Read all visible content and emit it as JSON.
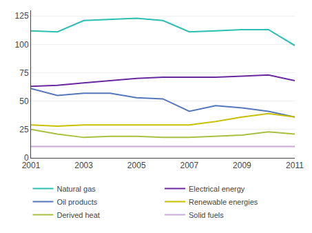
{
  "chart_data": {
    "type": "line",
    "x": [
      2001,
      2002,
      2003,
      2004,
      2005,
      2006,
      2007,
      2008,
      2009,
      2010,
      2011
    ],
    "series": [
      {
        "name": "Natural gas",
        "color": "#2bbfb0",
        "values": [
          112,
          111,
          121,
          122,
          123,
          121,
          111,
          112,
          113,
          113,
          99
        ]
      },
      {
        "name": "Electrical energy",
        "color": "#6a28a0",
        "values": [
          63,
          64,
          66,
          68,
          70,
          71,
          71,
          71,
          72,
          73,
          68
        ]
      },
      {
        "name": "Oil products",
        "color": "#5577bb",
        "values": [
          61,
          55,
          57,
          57,
          53,
          52,
          41,
          46,
          44,
          41,
          36
        ]
      },
      {
        "name": "Renewable energies",
        "color": "#c8c000",
        "values": [
          29,
          28,
          29,
          29,
          29,
          29,
          29,
          32,
          36,
          39,
          36
        ]
      },
      {
        "name": "Derived heat",
        "color": "#a8c040",
        "values": [
          25,
          21,
          18,
          19,
          19,
          18,
          18,
          19,
          20,
          23,
          21
        ]
      },
      {
        "name": "Solid fuels",
        "color": "#c8a8d8",
        "values": [
          10,
          10,
          10,
          10,
          10,
          10,
          10,
          10,
          10,
          10,
          10
        ]
      }
    ],
    "xlim": [
      2001,
      2011
    ],
    "xticks": [
      2001,
      2003,
      2005,
      2007,
      2009,
      2011
    ],
    "ylim": [
      0,
      130
    ],
    "yticks": [
      0,
      25,
      50,
      75,
      100,
      125
    ],
    "grid": true,
    "legend": "bottom"
  }
}
